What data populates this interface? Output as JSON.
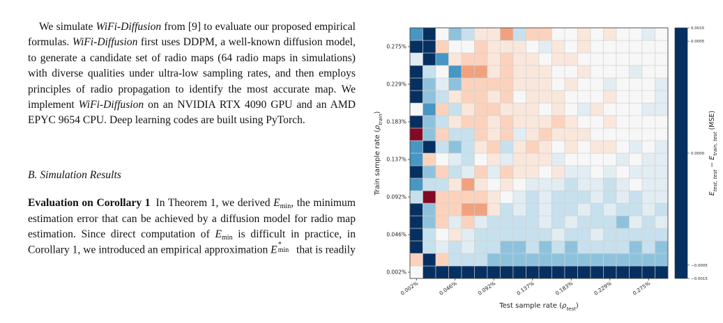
{
  "document": {
    "paragraph_1": [
      "We simulate ",
      "WiFi-Diffusion",
      " from [9] to evaluate our proposed empirical formulas. ",
      "WiFi-Diffusion",
      " first uses DDPM, a well-known diffusion model, to generate a candidate set of radio maps (64 radio maps in simulations) with diverse qualities under ultra-low sampling rates, and then employs principles of radio propagation to identify the most accurate map. We implement ",
      "WiFi-Diffusion",
      " on an NVIDIA RTX 4090 GPU and an AMD EPYC 9654 CPU. Deep learning codes are built using PyTorch."
    ],
    "heading": "B. Simulation Results",
    "paragraph_2": [
      "Evaluation on Corollary 1",
      "In Theorem 1, we derived ",
      "E",
      "min",
      ", the minimum estimation error that can be achieved by a diffusion model for radio map estimation. Since direct computation of ",
      "E",
      "min",
      " is difficult in practice, in Corollary 1, we introduced an empirical approximation ",
      "E",
      "*",
      "min",
      " that is readily"
    ]
  },
  "chart_data": {
    "type": "heatmap",
    "xlabel": [
      "Test sample rate (",
      "ρ",
      "test",
      ")"
    ],
    "ylabel": [
      "Train sample rate (",
      "ρ",
      "train",
      ")"
    ],
    "colorbar_label": [
      "E",
      "test, test",
      " − ",
      "E",
      "train, test",
      " (MSE)"
    ],
    "colormap": "RdBu_r",
    "x_categories": [
      "0.002%",
      null,
      null,
      "0.046%",
      null,
      null,
      "0.092%",
      null,
      null,
      "0.137%",
      null,
      null,
      "0.183%",
      null,
      null,
      "0.229%",
      null,
      null,
      "0.275%",
      null
    ],
    "y_categories": [
      "0.002%",
      null,
      null,
      "0.046%",
      null,
      null,
      "0.092%",
      null,
      null,
      "0.137%",
      null,
      null,
      "0.183%",
      null,
      null,
      "0.229%",
      null,
      null,
      "0.275%",
      null
    ],
    "clim": [
      -0.0015,
      0.0015
    ],
    "cticks": [
      0.0015,
      0.0005,
      {
        "value": 0,
        "label": "0.0000"
      },
      {
        "value": -0.0005,
        "label": "−0.0005"
      },
      {
        "value": -0.0015,
        "label": "−0.0015"
      }
    ],
    "z": [
      [
        0,
        -0.0015,
        -0.0015,
        -0.0015,
        -0.0015,
        -0.0015,
        -0.0015,
        -0.0015,
        -0.0015,
        -0.0015,
        -0.0015,
        -0.0015,
        -0.0015,
        -0.0015,
        -0.0015,
        -0.0015,
        -0.0015,
        -0.0015,
        -0.0015,
        -0.0015
      ],
      [
        1e-06,
        -0.0015,
        1e-06,
        -1e-06,
        -1e-06,
        -1e-06,
        -1e-05,
        -1e-05,
        -1e-05,
        -1e-05,
        -1e-05,
        -1e-05,
        -1e-05,
        -1e-05,
        -1e-05,
        -1e-05,
        -1e-05,
        -1e-05,
        -1e-05,
        -1e-05
      ],
      [
        -0.0015,
        -1e-06,
        -2e-07,
        -1e-06,
        -2e-07,
        -1e-06,
        -1e-06,
        -1e-05,
        -1e-05,
        -1e-06,
        -1e-05,
        -1e-06,
        -1e-05,
        -1e-06,
        -1e-06,
        -1e-06,
        -1e-06,
        -1e-05,
        -1e-06,
        -1e-05
      ],
      [
        -0.0015,
        -1e-06,
        0,
        2e-07,
        -2e-07,
        -1e-06,
        -1e-06,
        -1e-06,
        -1e-06,
        -1e-06,
        -1e-06,
        -2e-07,
        -1e-06,
        -1e-06,
        -2e-07,
        -1e-06,
        -1e-06,
        -1e-06,
        -1e-06,
        -1e-06
      ],
      [
        -0.0015,
        -1e-05,
        1e-06,
        -2e-07,
        1e-06,
        -2e-07,
        -1e-06,
        -1e-06,
        -1e-06,
        -1e-06,
        -2e-07,
        -1e-06,
        -2e-07,
        -1e-06,
        -1e-06,
        -1e-06,
        -1e-05,
        -2e-07,
        -1e-06,
        -2e-07
      ],
      [
        -0.0015,
        -1e-05,
        1e-06,
        1e-06,
        1e-05,
        1e-05,
        2e-07,
        -1e-06,
        -2e-07,
        -1e-06,
        -2e-07,
        -1e-06,
        -1e-06,
        -2e-07,
        -1e-06,
        -2e-07,
        -1e-06,
        -1e-06,
        -2e-07,
        -1e-06
      ],
      [
        -1e-06,
        0.001,
        1e-06,
        1e-06,
        1e-06,
        1e-06,
        2e-07,
        0,
        -2e-07,
        -1e-06,
        -2e-07,
        -1e-06,
        -1e-06,
        -1e-06,
        -2e-07,
        -1e-06,
        -2e-07,
        -1e-06,
        -2e-07,
        -2e-07
      ],
      [
        -0.0001,
        -1e-06,
        -1e-06,
        2e-07,
        1e-05,
        2e-07,
        0,
        2e-07,
        0,
        -2e-07,
        -2e-07,
        -2e-07,
        -1e-06,
        -2e-07,
        -2e-07,
        -1e-06,
        -2e-07,
        0,
        -2e-07,
        -2e-07
      ],
      [
        -0.0015,
        -1e-05,
        1e-06,
        -1e-06,
        -2e-07,
        1e-06,
        -2e-07,
        1e-06,
        2e-07,
        2e-07,
        0,
        2e-07,
        -2e-07,
        -2e-07,
        0,
        -2e-07,
        0,
        -2e-07,
        -2e-07,
        -2e-07
      ],
      [
        -0.0001,
        1e-06,
        0,
        -2e-07,
        -1e-06,
        0,
        2e-07,
        -2e-07,
        2e-07,
        2e-07,
        2e-07,
        -2e-07,
        0,
        0,
        0,
        0,
        -2e-07,
        0,
        -2e-07,
        -2e-07
      ],
      [
        -0.0001,
        -0.0015,
        -1e-06,
        -1e-05,
        -1e-06,
        2e-07,
        1e-06,
        -1e-06,
        2e-07,
        1e-06,
        2e-07,
        0,
        2e-07,
        0,
        2e-07,
        2e-07,
        0,
        -2e-07,
        0,
        -2e-07
      ],
      [
        0.001,
        -1e-05,
        1e-06,
        -1e-06,
        -1e-06,
        1e-06,
        2e-07,
        1e-06,
        -2e-07,
        2e-07,
        1e-06,
        2e-07,
        2e-07,
        2e-07,
        0,
        0,
        0,
        0,
        0,
        0
      ],
      [
        -0.0015,
        -1e-05,
        -1e-06,
        2e-07,
        1e-06,
        1e-06,
        2e-07,
        1e-06,
        2e-07,
        2e-07,
        2e-07,
        1e-06,
        2e-07,
        0,
        0,
        2e-07,
        0,
        0,
        0,
        0
      ],
      [
        0,
        -0.0001,
        1e-06,
        -1e-06,
        2e-07,
        1e-06,
        1e-06,
        2e-07,
        2e-07,
        2e-07,
        0,
        2e-07,
        0,
        -2e-07,
        2e-07,
        0,
        0,
        0,
        -2e-07,
        -2e-07
      ],
      [
        -0.0015,
        -1e-05,
        -1e-06,
        2e-07,
        1e-06,
        1e-06,
        2e-07,
        1e-06,
        0,
        2e-07,
        2e-07,
        2e-07,
        0,
        0,
        0,
        2e-07,
        0,
        0,
        0,
        -2e-07
      ],
      [
        -0.0015,
        -1e-05,
        -2e-07,
        -1e-05,
        1e-06,
        1e-06,
        1e-06,
        1e-06,
        2e-07,
        2e-07,
        2e-07,
        0,
        2e-07,
        0,
        0,
        -2e-07,
        0,
        0,
        0,
        -2e-07
      ],
      [
        -0.0015,
        -1e-06,
        0,
        -0.0001,
        1e-05,
        1e-05,
        2e-07,
        1e-06,
        2e-07,
        2e-07,
        2e-07,
        0,
        0,
        2e-07,
        0,
        0,
        0,
        -2e-07,
        0,
        0
      ],
      [
        -2e-07,
        -0.0015,
        -0.0001,
        2e-07,
        1e-06,
        1e-06,
        2e-07,
        1e-06,
        2e-07,
        2e-07,
        0,
        2e-07,
        2e-07,
        0,
        0,
        0,
        0,
        0,
        0,
        0
      ],
      [
        -0.0015,
        -0.0015,
        1e-06,
        0,
        0,
        1e-06,
        2e-07,
        2e-07,
        2e-07,
        0,
        -2e-07,
        2e-07,
        0,
        2e-07,
        0,
        0,
        0,
        0,
        0,
        0
      ],
      [
        -0.0001,
        -0.0015,
        0,
        -1e-05,
        -1e-06,
        2e-07,
        2e-07,
        1e-05,
        -1e-06,
        1e-06,
        1e-06,
        0,
        0,
        2e-07,
        0,
        2e-07,
        0,
        0,
        -2e-07,
        0
      ]
    ]
  }
}
